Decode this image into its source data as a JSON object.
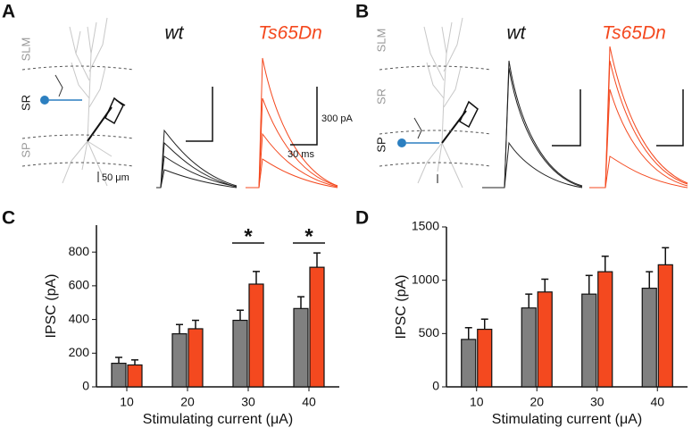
{
  "panels": [
    {
      "letter": "A",
      "labels": [
        "wt",
        "Ts65Dn"
      ],
      "layers": [
        "SLM",
        "SR",
        "SP"
      ],
      "scale_neuron": "50 μm",
      "scale_current": "300 pA",
      "scale_time": "30 ms"
    },
    {
      "letter": "B",
      "labels": [
        "wt",
        "Ts65Dn"
      ],
      "layers": [
        "SLM",
        "SR",
        "SP"
      ]
    }
  ],
  "chart_data": [
    {
      "type": "bar",
      "panel": "C",
      "xlabel": "Stimulating current (μA)",
      "ylabel": "IPSC (pA)",
      "categories": [
        "10",
        "20",
        "30",
        "40"
      ],
      "series": [
        {
          "color": "#808080",
          "values": [
            140,
            315,
            395,
            465
          ],
          "errors": [
            35,
            55,
            60,
            70
          ]
        },
        {
          "color": "#f4491f",
          "values": [
            130,
            345,
            610,
            710
          ],
          "errors": [
            30,
            50,
            75,
            85
          ]
        }
      ],
      "ylim": [
        0,
        960
      ],
      "yticks": [
        0,
        200,
        400,
        600,
        800
      ],
      "annotations": [
        {
          "text": "*",
          "at": "30"
        },
        {
          "text": "*",
          "at": "40"
        }
      ]
    },
    {
      "type": "bar",
      "panel": "D",
      "xlabel": "Stimulating current (μA)",
      "ylabel": "IPSC (pA)",
      "categories": [
        "10",
        "20",
        "30",
        "40"
      ],
      "series": [
        {
          "color": "#808080",
          "values": [
            445,
            740,
            870,
            925
          ],
          "errors": [
            110,
            130,
            175,
            155
          ]
        },
        {
          "color": "#f4491f",
          "values": [
            540,
            890,
            1080,
            1145
          ],
          "errors": [
            95,
            120,
            145,
            160
          ]
        }
      ],
      "ylim": [
        0,
        1500
      ],
      "yticks": [
        0,
        500,
        1000,
        1500
      ]
    }
  ]
}
